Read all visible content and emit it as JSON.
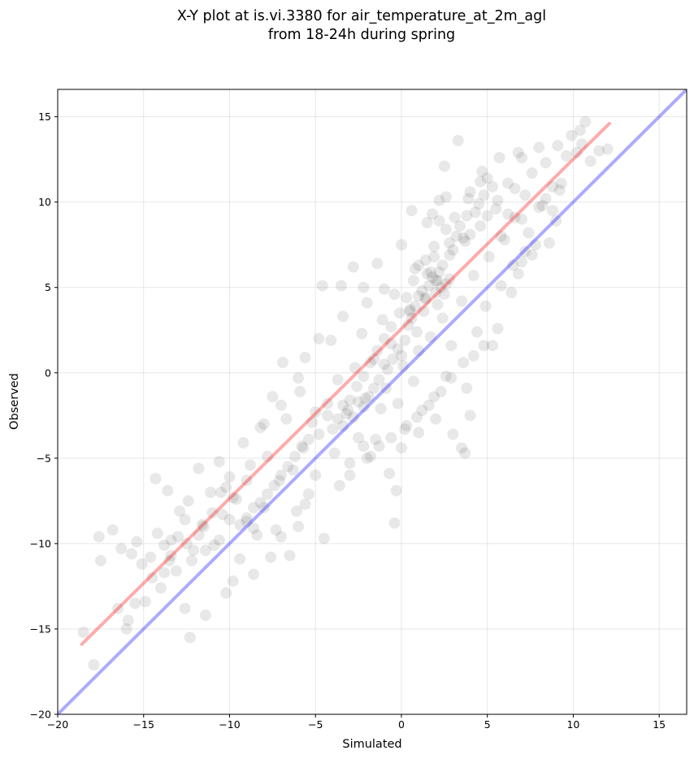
{
  "chart_data": {
    "type": "scatter",
    "title": [
      "X-Y plot at is.vi.3380 for air_temperature_at_2m_agl",
      "from 18-24h during spring"
    ],
    "xlabel": "Simulated",
    "ylabel": "Observed",
    "xlim": [
      -20,
      16.6
    ],
    "ylim": [
      -20,
      16.6
    ],
    "xticks": [
      -20,
      -15,
      -10,
      -5,
      0,
      5,
      10,
      15
    ],
    "yticks": [
      -20,
      -15,
      -10,
      -5,
      0,
      5,
      10,
      15
    ],
    "xtick_labels": [
      "−20",
      "−15",
      "−10",
      "−5",
      "0",
      "5",
      "10",
      "15"
    ],
    "ytick_labels": [
      "−20",
      "−15",
      "−10",
      "−5",
      "0",
      "5",
      "10",
      "15"
    ],
    "grid": true,
    "point_color": "#000000",
    "point_alpha": 0.09,
    "fit_line": {
      "color": "#ff0000",
      "alpha": 0.33,
      "x": [
        -18.6,
        12.1
      ],
      "y": [
        -15.9,
        14.6
      ]
    },
    "identity_line": {
      "color": "#0000ff",
      "alpha": 0.33,
      "x": [
        -20,
        16.6
      ],
      "y": [
        -20,
        16.6
      ]
    },
    "points": [
      [
        -18.5,
        -15.2
      ],
      [
        -17.9,
        -17.1
      ],
      [
        -17.6,
        -9.6
      ],
      [
        -17.5,
        -11.0
      ],
      [
        -16.8,
        -9.2
      ],
      [
        -16.3,
        -10.3
      ],
      [
        -16.0,
        -15.0
      ],
      [
        -15.9,
        -14.5
      ],
      [
        -15.7,
        -10.6
      ],
      [
        -15.4,
        -9.9
      ],
      [
        -15.1,
        -11.2
      ],
      [
        -14.9,
        -13.4
      ],
      [
        -14.6,
        -10.8
      ],
      [
        -14.3,
        -6.2
      ],
      [
        -14.0,
        -12.6
      ],
      [
        -13.8,
        -10.1
      ],
      [
        -13.6,
        -6.9
      ],
      [
        -13.4,
        -9.8
      ],
      [
        -13.1,
        -11.6
      ],
      [
        -12.9,
        -8.1
      ],
      [
        -12.6,
        -13.8
      ],
      [
        -12.4,
        -7.5
      ],
      [
        -12.3,
        -15.5
      ],
      [
        -12.1,
        -10.4
      ],
      [
        -11.8,
        -5.6
      ],
      [
        -11.6,
        -8.9
      ],
      [
        -11.4,
        -14.2
      ],
      [
        -11.1,
        -7.0
      ],
      [
        -10.9,
        -10.1
      ],
      [
        -10.6,
        -5.2
      ],
      [
        -10.4,
        -8.3
      ],
      [
        -10.2,
        -12.9
      ],
      [
        -10.0,
        -6.1
      ],
      [
        -9.8,
        -12.2
      ],
      [
        -9.6,
        -7.4
      ],
      [
        -9.4,
        -10.9
      ],
      [
        -9.2,
        -4.1
      ],
      [
        -9.0,
        -8.7
      ],
      [
        -8.8,
        -5.4
      ],
      [
        -8.6,
        -11.8
      ],
      [
        -8.4,
        -9.5
      ],
      [
        -8.2,
        -3.2
      ],
      [
        -8.0,
        -7.9
      ],
      [
        -7.8,
        -4.9
      ],
      [
        -7.6,
        -10.8
      ],
      [
        -7.5,
        -1.4
      ],
      [
        -7.3,
        -9.2
      ],
      [
        -7.1,
        -6.3
      ],
      [
        -6.9,
        0.6
      ],
      [
        -6.7,
        -2.7
      ],
      [
        -6.5,
        -10.7
      ],
      [
        -6.3,
        -5.7
      ],
      [
        -6.1,
        -8.1
      ],
      [
        -5.9,
        -1.1
      ],
      [
        -5.7,
        -4.4
      ],
      [
        -5.6,
        0.9
      ],
      [
        -5.4,
        -7.1
      ],
      [
        -5.2,
        -2.9
      ],
      [
        -5.0,
        -6.0
      ],
      [
        -4.8,
        -3.6
      ],
      [
        -4.6,
        5.1
      ],
      [
        -4.5,
        -9.7
      ],
      [
        -4.3,
        -1.8
      ],
      [
        -4.1,
        1.9
      ],
      [
        -3.9,
        -4.7
      ],
      [
        -3.7,
        -0.4
      ],
      [
        -3.6,
        -6.6
      ],
      [
        -3.4,
        3.3
      ],
      [
        -3.2,
        -2.4
      ],
      [
        -3.0,
        -5.3
      ],
      [
        -2.8,
        6.2
      ],
      [
        -2.7,
        0.3
      ],
      [
        -2.5,
        -3.8
      ],
      [
        -2.3,
        2.3
      ],
      [
        -2.1,
        -1.5
      ],
      [
        -2.0,
        4.1
      ],
      [
        -1.8,
        -4.9
      ],
      [
        -1.6,
        0.8
      ],
      [
        -1.4,
        6.4
      ],
      [
        -1.2,
        -2.1
      ],
      [
        -1.1,
        3.1
      ],
      [
        -0.9,
        -0.9
      ],
      [
        -0.7,
        -5.9
      ],
      [
        -0.6,
        1.7
      ],
      [
        -0.4,
        4.6
      ],
      [
        -0.2,
        -1.8
      ],
      [
        0.0,
        7.5
      ],
      [
        0.1,
        0.4
      ],
      [
        0.3,
        -3.1
      ],
      [
        0.5,
        3.6
      ],
      [
        0.7,
        -0.5
      ],
      [
        0.8,
        6.1
      ],
      [
        1.0,
        1.3
      ],
      [
        1.2,
        -2.2
      ],
      [
        1.4,
        4.4
      ],
      [
        1.5,
        8.8
      ],
      [
        1.7,
        2.1
      ],
      [
        1.9,
        -1.4
      ],
      [
        2.1,
        5.4
      ],
      [
        2.2,
        10.1
      ],
      [
        2.4,
        3.2
      ],
      [
        2.6,
        -0.2
      ],
      [
        2.8,
        6.9
      ],
      [
        2.9,
        1.6
      ],
      [
        3.1,
        9.1
      ],
      [
        3.3,
        13.6
      ],
      [
        3.5,
        4.2
      ],
      [
        3.7,
        7.7
      ],
      [
        3.8,
        -0.9
      ],
      [
        4.0,
        10.6
      ],
      [
        4.2,
        5.7
      ],
      [
        4.4,
        2.4
      ],
      [
        4.6,
        8.6
      ],
      [
        4.7,
        11.8
      ],
      [
        4.9,
        3.9
      ],
      [
        5.1,
        6.8
      ],
      [
        5.3,
        1.6
      ],
      [
        5.5,
        9.6
      ],
      [
        5.7,
        12.6
      ],
      [
        5.8,
        5.1
      ],
      [
        6.0,
        7.8
      ],
      [
        6.2,
        11.1
      ],
      [
        6.4,
        4.7
      ],
      [
        6.6,
        9.1
      ],
      [
        6.8,
        12.9
      ],
      [
        7.0,
        6.5
      ],
      [
        7.2,
        10.4
      ],
      [
        7.4,
        8.2
      ],
      [
        7.6,
        11.7
      ],
      [
        7.8,
        7.5
      ],
      [
        8.0,
        13.2
      ],
      [
        8.2,
        9.8
      ],
      [
        8.4,
        12.3
      ],
      [
        8.6,
        7.6
      ],
      [
        8.8,
        10.9
      ],
      [
        9.1,
        13.3
      ],
      [
        9.3,
        11.1
      ],
      [
        9.6,
        12.7
      ],
      [
        9.9,
        13.9
      ],
      [
        10.2,
        12.9
      ],
      [
        10.5,
        13.4
      ],
      [
        10.7,
        14.7
      ],
      [
        11.0,
        12.4
      ],
      [
        11.5,
        13.0
      ],
      [
        12.0,
        13.1
      ],
      [
        10.4,
        14.2
      ],
      [
        9.0,
        8.9
      ],
      [
        7.0,
        12.6
      ],
      [
        5.0,
        11.4
      ],
      [
        2.5,
        12.1
      ],
      [
        1.8,
        9.3
      ],
      [
        0.6,
        9.5
      ],
      [
        -1.0,
        4.9
      ],
      [
        -2.2,
        5.0
      ],
      [
        -3.5,
        5.1
      ],
      [
        -4.8,
        2.0
      ],
      [
        -6.0,
        -0.3
      ],
      [
        -7.0,
        -1.9
      ],
      [
        -8.0,
        -3.0
      ],
      [
        -9.0,
        -6.3
      ],
      [
        -10.5,
        -7.0
      ],
      [
        -11.5,
        -9.0
      ],
      [
        -12.5,
        -10.0
      ],
      [
        -13.5,
        -11.0
      ],
      [
        -14.5,
        -12.0
      ],
      [
        -15.5,
        -13.5
      ],
      [
        -16.5,
        -13.8
      ],
      [
        -3.0,
        -6.0
      ],
      [
        -1.5,
        -3.9
      ],
      [
        0.0,
        -4.4
      ],
      [
        1.0,
        -3.5
      ],
      [
        2.0,
        -2.7
      ],
      [
        3.0,
        -3.6
      ],
      [
        4.0,
        -2.5
      ],
      [
        3.5,
        -4.4
      ],
      [
        3.7,
        -4.7
      ],
      [
        -0.4,
        -8.8
      ],
      [
        -0.3,
        -6.9
      ],
      [
        -2.2,
        -4.3
      ],
      [
        -5.6,
        -7.7
      ],
      [
        -6.0,
        -9.0
      ],
      [
        -7.0,
        -9.6
      ],
      [
        -8.6,
        -9.1
      ],
      [
        -10.0,
        -8.6
      ],
      [
        1.6,
        5.1
      ],
      [
        1.8,
        5.6
      ],
      [
        2.0,
        4.7
      ],
      [
        2.2,
        5.9
      ],
      [
        1.4,
        4.3
      ],
      [
        2.4,
        6.3
      ],
      [
        2.6,
        5.2
      ],
      [
        1.9,
        6.8
      ],
      [
        2.1,
        4.0
      ],
      [
        1.7,
        5.9
      ],
      [
        2.3,
        5.0
      ],
      [
        2.0,
        5.4
      ],
      [
        1.5,
        5.8
      ],
      [
        2.5,
        4.6
      ],
      [
        1.2,
        4.8
      ],
      [
        2.8,
        5.5
      ],
      [
        0.8,
        3.9
      ],
      [
        1.0,
        4.5
      ],
      [
        0.6,
        3.2
      ],
      [
        1.3,
        3.6
      ],
      [
        0.4,
        2.8
      ],
      [
        0.9,
        2.4
      ],
      [
        0.2,
        1.9
      ],
      [
        0.5,
        3.7
      ],
      [
        -0.5,
        0.8
      ],
      [
        -0.2,
        1.4
      ],
      [
        -0.8,
        0.2
      ],
      [
        0.0,
        1.0
      ],
      [
        -1.0,
        0.5
      ],
      [
        -1.3,
        -0.4
      ],
      [
        -1.6,
        -0.9
      ],
      [
        -1.9,
        -1.4
      ],
      [
        -2.2,
        -2.0
      ],
      [
        -2.5,
        -1.7
      ],
      [
        -2.8,
        -2.6
      ],
      [
        -3.1,
        -2.2
      ],
      [
        -3.4,
        -3.1
      ],
      [
        -3.7,
        -2.7
      ],
      [
        -4.0,
        -3.3
      ],
      [
        -4.3,
        -2.5
      ],
      [
        3.0,
        7.2
      ],
      [
        3.2,
        8.0
      ],
      [
        2.8,
        7.6
      ],
      [
        3.4,
        8.6
      ],
      [
        3.6,
        7.9
      ],
      [
        2.6,
        8.4
      ],
      [
        3.8,
        9.2
      ],
      [
        4.0,
        8.1
      ],
      [
        4.3,
        9.4
      ],
      [
        3.9,
        10.2
      ],
      [
        4.5,
        9.9
      ],
      [
        4.8,
        10.4
      ],
      [
        5.0,
        9.2
      ],
      [
        5.3,
        10.9
      ],
      [
        4.6,
        11.2
      ],
      [
        5.6,
        10.1
      ],
      [
        2.6,
        10.3
      ],
      [
        2.2,
        8.9
      ],
      [
        1.9,
        7.4
      ],
      [
        1.4,
        6.6
      ],
      [
        1.0,
        6.3
      ],
      [
        0.7,
        5.4
      ],
      [
        0.3,
        4.4
      ],
      [
        -0.1,
        3.5
      ],
      [
        -0.6,
        2.7
      ],
      [
        -1.0,
        2.0
      ],
      [
        -1.4,
        1.3
      ],
      [
        -1.8,
        0.6
      ],
      [
        -2.2,
        -0.2
      ],
      [
        -2.6,
        -0.8
      ],
      [
        -3.0,
        -1.6
      ],
      [
        -3.4,
        -1.9
      ],
      [
        -5.0,
        -2.3
      ],
      [
        -5.4,
        -3.9
      ],
      [
        -5.8,
        -4.3
      ],
      [
        -6.2,
        -4.9
      ],
      [
        -6.6,
        -5.5
      ],
      [
        -7.0,
        -6.0
      ],
      [
        -7.4,
        -6.6
      ],
      [
        -7.8,
        -7.1
      ],
      [
        -8.2,
        -7.6
      ],
      [
        -8.6,
        -7.9
      ],
      [
        -9.0,
        -8.5
      ],
      [
        -9.4,
        -8.9
      ],
      [
        -9.8,
        -7.3
      ],
      [
        -10.2,
        -6.7
      ],
      [
        -10.6,
        -9.8
      ],
      [
        -11.0,
        -8.2
      ],
      [
        -11.4,
        -10.4
      ],
      [
        -11.8,
        -9.5
      ],
      [
        -12.2,
        -11.0
      ],
      [
        -12.6,
        -8.6
      ],
      [
        -13.0,
        -9.6
      ],
      [
        -13.4,
        -10.7
      ],
      [
        -13.8,
        -11.7
      ],
      [
        -14.2,
        -9.4
      ],
      [
        6.5,
        6.3
      ],
      [
        6.8,
        5.8
      ],
      [
        7.2,
        7.1
      ],
      [
        7.6,
        6.9
      ],
      [
        5.6,
        2.6
      ],
      [
        4.8,
        1.6
      ],
      [
        4.2,
        1.0
      ],
      [
        3.6,
        0.6
      ],
      [
        2.9,
        -0.3
      ],
      [
        2.3,
        -1.1
      ],
      [
        1.6,
        -1.9
      ],
      [
        0.9,
        -2.6
      ],
      [
        0.2,
        -3.3
      ],
      [
        -0.6,
        -3.8
      ],
      [
        -1.3,
        -4.3
      ],
      [
        -2.0,
        -5.0
      ],
      [
        8.0,
        9.7
      ],
      [
        8.4,
        10.2
      ],
      [
        8.8,
        9.5
      ],
      [
        9.2,
        10.7
      ],
      [
        6.2,
        9.3
      ],
      [
        5.8,
        8.0
      ],
      [
        6.6,
        10.8
      ],
      [
        7.0,
        9.0
      ]
    ]
  }
}
